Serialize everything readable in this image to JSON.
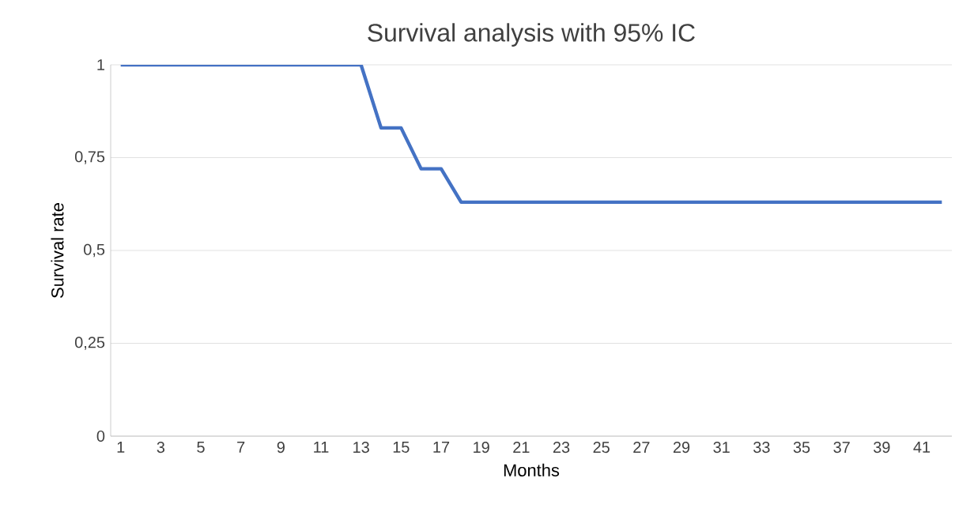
{
  "chart_data": {
    "type": "line",
    "title": "Survival analysis with 95% IC",
    "xlabel": "Months",
    "ylabel": "Survival rate",
    "categories": [
      "1",
      null,
      "3",
      null,
      "5",
      null,
      "7",
      null,
      "9",
      null,
      "11",
      null,
      "13",
      null,
      "15",
      null,
      "17",
      null,
      "19",
      null,
      "21",
      null,
      "23",
      null,
      "25",
      null,
      "27",
      null,
      "29",
      null,
      "31",
      null,
      "33",
      null,
      "35",
      null,
      "37",
      null,
      "39",
      null,
      "41",
      null
    ],
    "values": [
      1,
      1,
      1,
      1,
      1,
      1,
      1,
      1,
      1,
      1,
      1,
      1,
      1,
      0.83,
      0.83,
      0.72,
      0.72,
      0.63,
      0.63,
      0.63,
      0.63,
      0.63,
      0.63,
      0.63,
      0.63,
      0.63,
      0.63,
      0.63,
      0.63,
      0.63,
      0.63,
      0.63,
      0.63,
      0.63,
      0.63,
      0.63,
      0.63,
      0.63,
      0.63,
      0.63,
      0.63,
      0.63
    ],
    "color": "#4472c4",
    "ylim": [
      0,
      1
    ],
    "yticks": [
      0,
      {
        "value": 0.25,
        "label": "0,25"
      },
      {
        "value": 0.5,
        "label": "0,5"
      },
      {
        "value": 0.75,
        "label": "0,75"
      },
      1
    ],
    "grid": "y",
    "marker": "none",
    "line_style": "solid"
  }
}
